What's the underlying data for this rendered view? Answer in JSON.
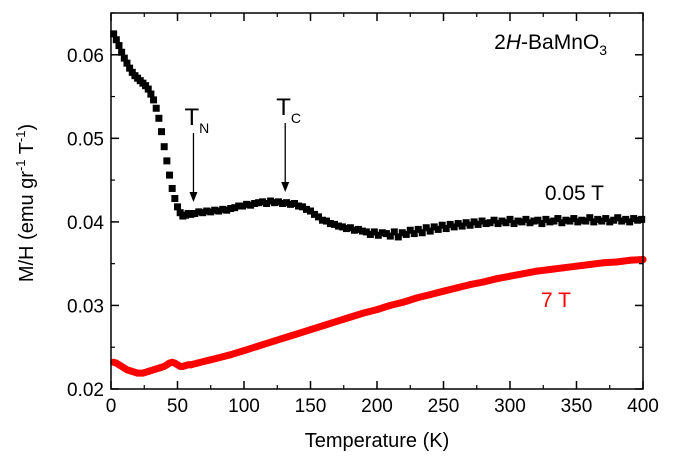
{
  "chart_data": {
    "type": "scatter",
    "xlabel": "Temperature (K)",
    "ylabel_parts": [
      "M/H (emu gr",
      "-1",
      " T",
      "-1",
      ")"
    ],
    "sample_label": {
      "prefix": "2",
      "italic": "H",
      "main": "-BaMnO",
      "sub": "3"
    },
    "xlim": [
      0,
      400
    ],
    "ylim": [
      0.02,
      0.065
    ],
    "xticks": [
      0,
      50,
      100,
      150,
      200,
      250,
      300,
      350,
      400
    ],
    "xtick_labels": [
      "0",
      "50",
      "100",
      "150",
      "200",
      "250",
      "300",
      "350",
      "400"
    ],
    "yticks": [
      0.02,
      0.03,
      0.04,
      0.05,
      0.06
    ],
    "ytick_labels": [
      "0.02",
      "0.03",
      "0.04",
      "0.05",
      "0.06"
    ],
    "markers": [
      {
        "main": "T",
        "sub": "N",
        "x": 62,
        "y": 0.0413
      },
      {
        "main": "T",
        "sub": "C",
        "x": 131,
        "y": 0.0425
      }
    ],
    "series": [
      {
        "name": "0.05 T",
        "color": "#000000",
        "marker": "square",
        "x": [
          2,
          4,
          6,
          8,
          10,
          12,
          14,
          16,
          18,
          20,
          22,
          24,
          26,
          28,
          30,
          32,
          34,
          36,
          38,
          40,
          42,
          44,
          46,
          48,
          50,
          52,
          54,
          56,
          58,
          60,
          63,
          66,
          69,
          72,
          75,
          78,
          81,
          84,
          87,
          90,
          93,
          96,
          99,
          102,
          105,
          108,
          111,
          114,
          117,
          120,
          123,
          126,
          129,
          132,
          135,
          138,
          141,
          144,
          147,
          150,
          153,
          156,
          159,
          162,
          165,
          168,
          171,
          174,
          177,
          180,
          183,
          186,
          189,
          192,
          195,
          198,
          201,
          204,
          207,
          210,
          213,
          216,
          219,
          222,
          225,
          228,
          231,
          234,
          237,
          240,
          243,
          246,
          249,
          252,
          255,
          258,
          261,
          264,
          267,
          270,
          273,
          276,
          279,
          282,
          285,
          288,
          291,
          294,
          297,
          300,
          303,
          306,
          309,
          312,
          315,
          318,
          321,
          324,
          327,
          330,
          333,
          336,
          339,
          342,
          345,
          348,
          351,
          354,
          357,
          360,
          363,
          366,
          369,
          372,
          375,
          378,
          381,
          384,
          387,
          390,
          393,
          396,
          399
        ],
        "y": [
          0.0625,
          0.0618,
          0.0611,
          0.0603,
          0.0596,
          0.059,
          0.0584,
          0.0579,
          0.0575,
          0.0572,
          0.0569,
          0.0566,
          0.0563,
          0.0559,
          0.0553,
          0.0546,
          0.0536,
          0.0524,
          0.0508,
          0.049,
          0.0473,
          0.0456,
          0.044,
          0.0428,
          0.0418,
          0.0411,
          0.0407,
          0.0408,
          0.041,
          0.0409,
          0.041,
          0.0412,
          0.0411,
          0.0413,
          0.0412,
          0.0414,
          0.0413,
          0.0415,
          0.0414,
          0.0416,
          0.0417,
          0.0419,
          0.0419,
          0.0421,
          0.042,
          0.0422,
          0.0423,
          0.0424,
          0.0422,
          0.0425,
          0.0423,
          0.0424,
          0.0422,
          0.0423,
          0.0421,
          0.0422,
          0.0419,
          0.0418,
          0.0415,
          0.0413,
          0.0409,
          0.0406,
          0.0402,
          0.0401,
          0.0398,
          0.0397,
          0.0395,
          0.0394,
          0.0392,
          0.0393,
          0.039,
          0.0391,
          0.0389,
          0.0388,
          0.0385,
          0.0388,
          0.0384,
          0.0387,
          0.0386,
          0.0383,
          0.0388,
          0.0382,
          0.0387,
          0.0385,
          0.039,
          0.0386,
          0.0391,
          0.0387,
          0.0393,
          0.0389,
          0.0394,
          0.0391,
          0.0396,
          0.0392,
          0.0397,
          0.0394,
          0.0398,
          0.0395,
          0.0399,
          0.0396,
          0.04,
          0.0397,
          0.0401,
          0.0398,
          0.0399,
          0.0402,
          0.0398,
          0.0401,
          0.0399,
          0.0403,
          0.0398,
          0.0401,
          0.04,
          0.0403,
          0.0399,
          0.0401,
          0.0402,
          0.0398,
          0.0403,
          0.04,
          0.0401,
          0.0404,
          0.0399,
          0.0402,
          0.0401,
          0.0404,
          0.04,
          0.0402,
          0.0401,
          0.0405,
          0.04,
          0.0403,
          0.0401,
          0.0404,
          0.04,
          0.0402,
          0.0405,
          0.0401,
          0.0403,
          0.04,
          0.0404,
          0.0402,
          0.0403
        ]
      },
      {
        "name": "7 T",
        "color": "#ff0000",
        "marker": "line",
        "x": [
          2,
          4,
          6,
          8,
          10,
          12,
          14,
          16,
          18,
          20,
          22,
          24,
          26,
          28,
          30,
          32,
          34,
          36,
          38,
          40,
          42,
          44,
          46,
          48,
          50,
          52,
          54,
          56,
          58,
          60,
          65,
          70,
          75,
          80,
          90,
          100,
          110,
          120,
          130,
          140,
          150,
          160,
          170,
          180,
          190,
          200,
          210,
          220,
          230,
          240,
          250,
          260,
          270,
          280,
          290,
          300,
          310,
          320,
          330,
          340,
          350,
          360,
          370,
          380,
          390,
          400
        ],
        "y": [
          0.0232,
          0.0231,
          0.0229,
          0.0227,
          0.0225,
          0.0223,
          0.0222,
          0.0221,
          0.022,
          0.0219,
          0.0219,
          0.0219,
          0.022,
          0.0221,
          0.0222,
          0.0223,
          0.0224,
          0.0225,
          0.0226,
          0.0227,
          0.0229,
          0.0231,
          0.0232,
          0.0231,
          0.0229,
          0.0227,
          0.0227,
          0.0228,
          0.0229,
          0.0229,
          0.0231,
          0.0233,
          0.0235,
          0.0237,
          0.0241,
          0.0246,
          0.0251,
          0.0256,
          0.0261,
          0.0266,
          0.0271,
          0.0276,
          0.0281,
          0.0286,
          0.0291,
          0.0295,
          0.03,
          0.0304,
          0.0309,
          0.0313,
          0.0317,
          0.0321,
          0.0325,
          0.0328,
          0.0332,
          0.0335,
          0.0338,
          0.0341,
          0.0343,
          0.0345,
          0.0347,
          0.0349,
          0.0351,
          0.0352,
          0.0354,
          0.0355
        ]
      }
    ]
  }
}
